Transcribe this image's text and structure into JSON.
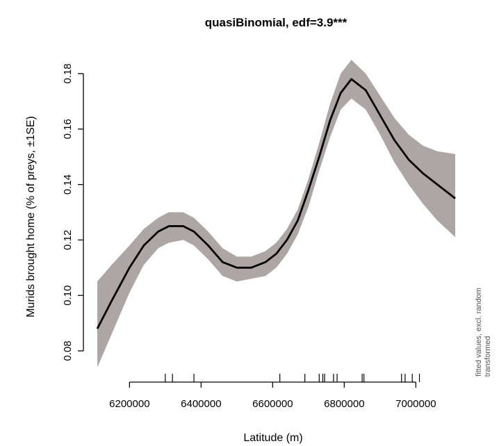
{
  "chart_data": {
    "type": "line",
    "title": "quasiBinomial, edf=3.9***",
    "xlabel": "Latitude (m)",
    "ylabel": "Murids brought home (% of preys, ±1SE)",
    "side_note_line1": "fitted values, excl. random",
    "side_note_line2": "transformed",
    "xlim": [
      6110000,
      7110000
    ],
    "ylim": [
      0.073,
      0.185
    ],
    "x_ticks": [
      6200000,
      6400000,
      6600000,
      6800000,
      7000000
    ],
    "x_tick_labels": [
      "6200000",
      "6400000",
      "6600000",
      "6800000",
      "7000000"
    ],
    "y_ticks": [
      0.08,
      0.1,
      0.12,
      0.14,
      0.16,
      0.18
    ],
    "y_tick_labels": [
      "0.08",
      "0.10",
      "0.12",
      "0.14",
      "0.16",
      "0.18"
    ],
    "series": [
      {
        "fit": {
          "x": [
            6110000,
            6150000,
            6200000,
            6240000,
            6280000,
            6310000,
            6350000,
            6380000,
            6420000,
            6460000,
            6500000,
            6540000,
            6580000,
            6610000,
            6640000,
            6670000,
            6700000,
            6730000,
            6760000,
            6790000,
            6820000,
            6860000,
            6900000,
            6940000,
            6980000,
            7020000,
            7060000,
            7110000
          ],
          "y": [
            0.088,
            0.098,
            0.11,
            0.118,
            0.123,
            0.125,
            0.125,
            0.123,
            0.118,
            0.112,
            0.11,
            0.11,
            0.112,
            0.115,
            0.12,
            0.127,
            0.138,
            0.15,
            0.163,
            0.173,
            0.178,
            0.174,
            0.165,
            0.156,
            0.149,
            0.144,
            0.14,
            0.135
          ],
          "upper": [
            0.105,
            0.111,
            0.118,
            0.124,
            0.128,
            0.13,
            0.13,
            0.128,
            0.123,
            0.117,
            0.114,
            0.114,
            0.116,
            0.119,
            0.124,
            0.131,
            0.142,
            0.155,
            0.169,
            0.18,
            0.185,
            0.18,
            0.172,
            0.164,
            0.158,
            0.154,
            0.152,
            0.151
          ],
          "lower": [
            0.074,
            0.086,
            0.101,
            0.111,
            0.117,
            0.119,
            0.12,
            0.118,
            0.113,
            0.107,
            0.105,
            0.106,
            0.107,
            0.11,
            0.115,
            0.122,
            0.132,
            0.145,
            0.157,
            0.167,
            0.171,
            0.167,
            0.158,
            0.148,
            0.14,
            0.133,
            0.127,
            0.121
          ]
        }
      }
    ],
    "rug_x": [
      6300000,
      6320000,
      6380000,
      6620000,
      6690000,
      6730000,
      6740000,
      6745000,
      6770000,
      6780000,
      6850000,
      6855000,
      6960000,
      6970000,
      6990000,
      7010000
    ],
    "colors": {
      "band": "#ada6a5",
      "line": "#000000",
      "axis": "#000000"
    },
    "grid": false
  }
}
